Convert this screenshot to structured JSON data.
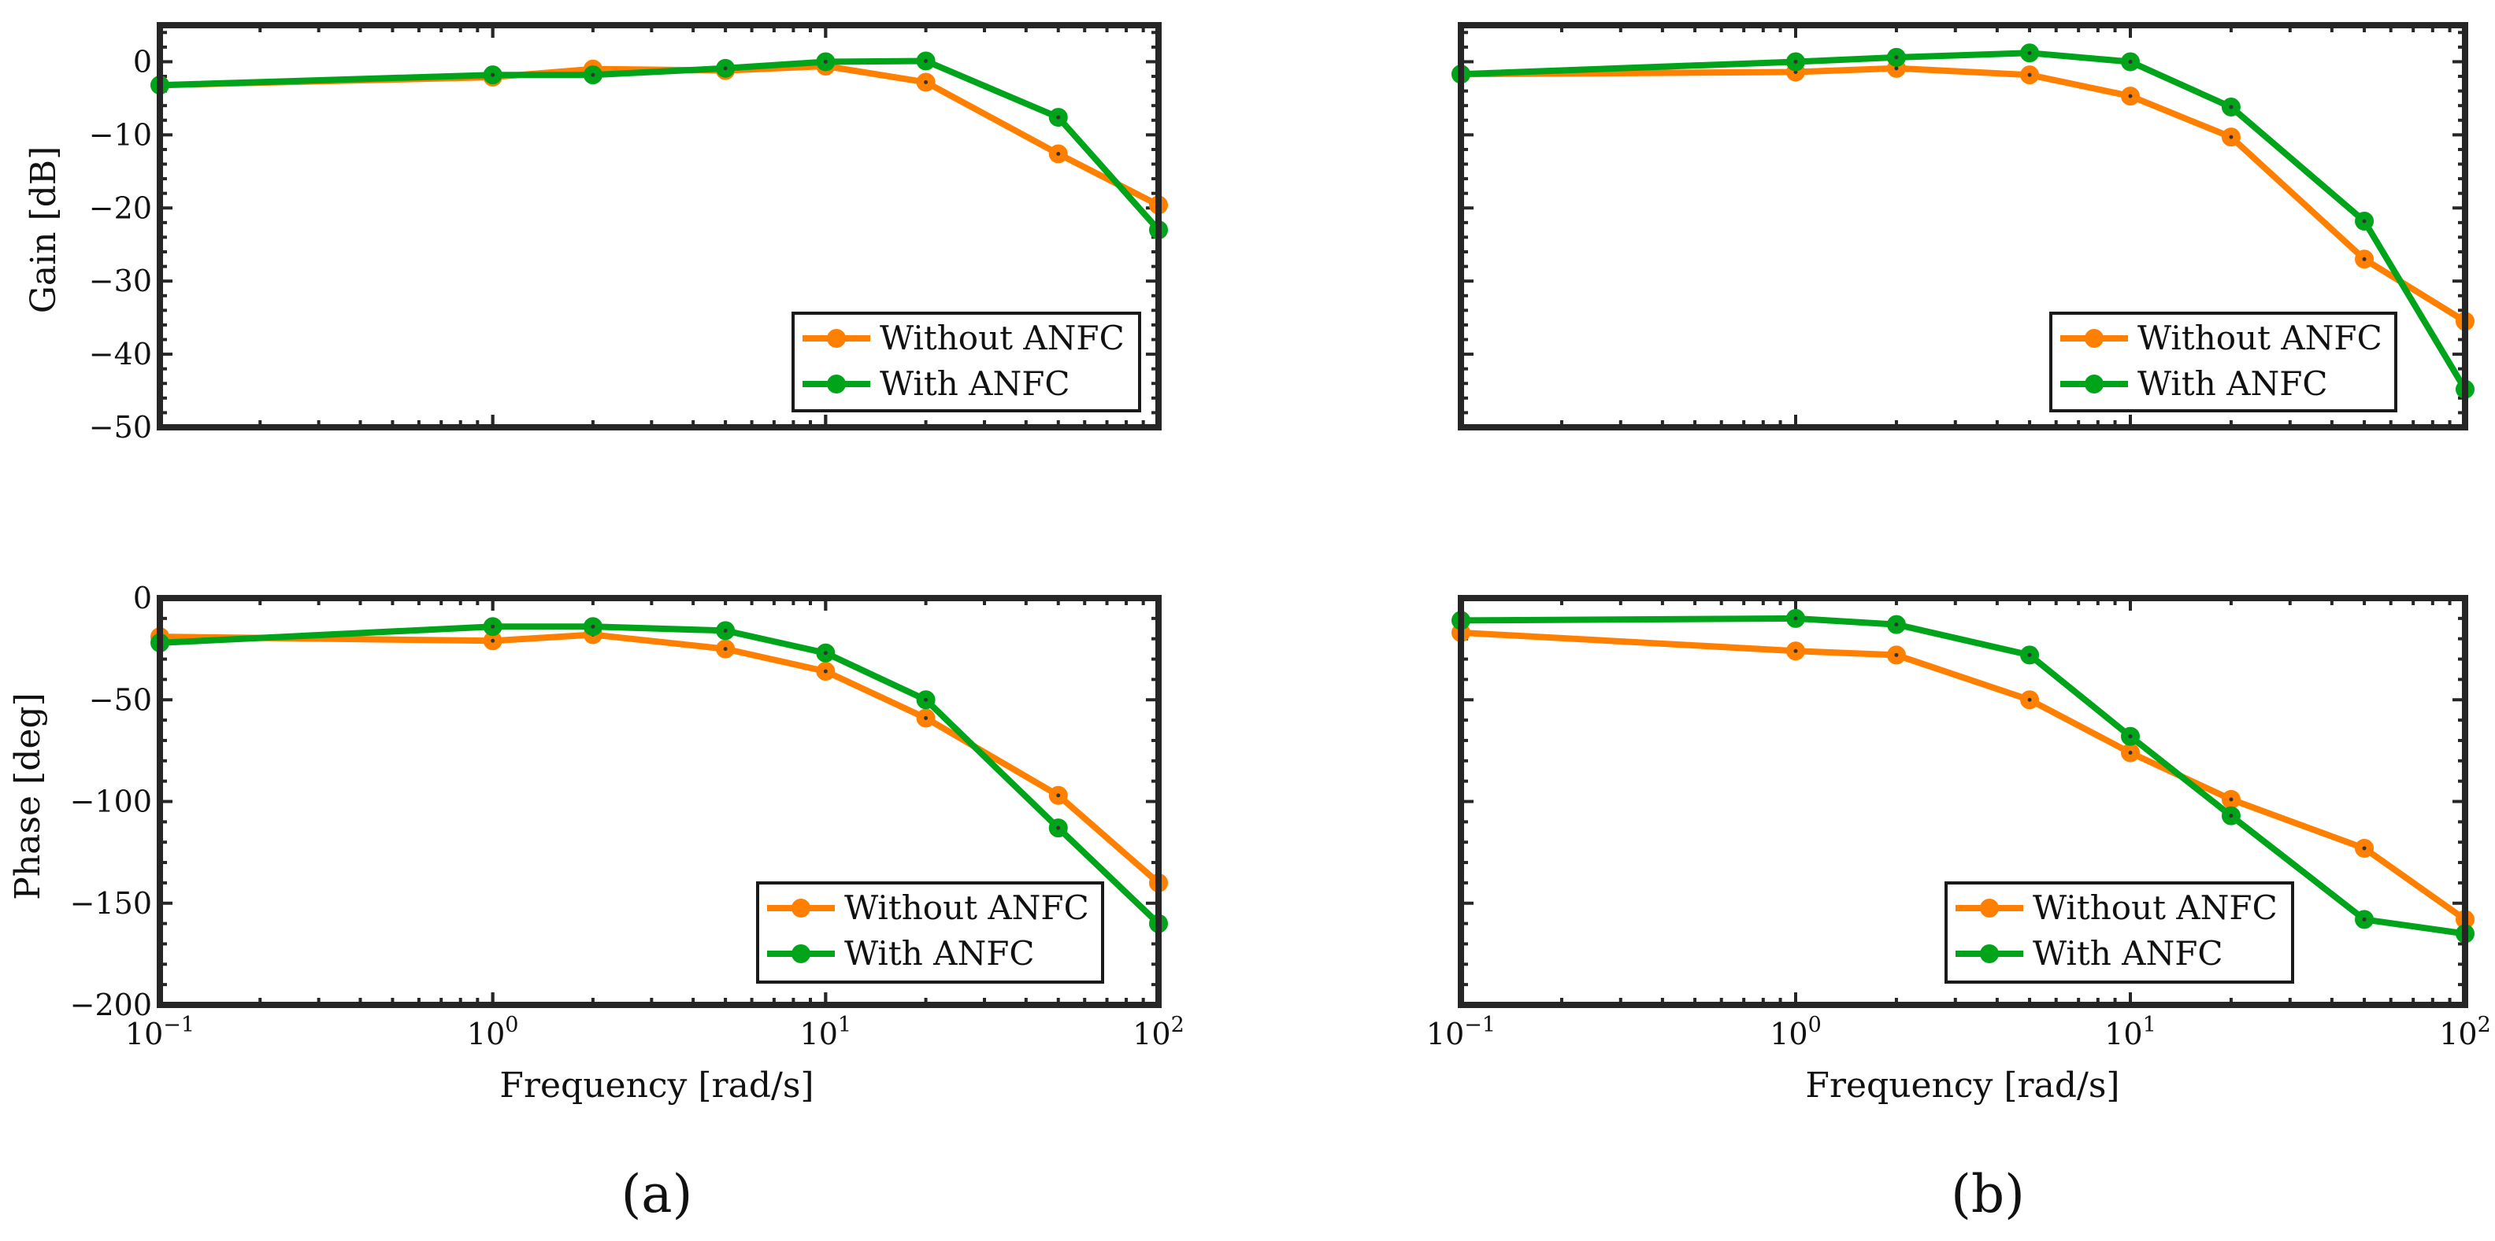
{
  "series_styles": [
    {
      "name": "Without ANFC",
      "color": "#FF8000"
    },
    {
      "name": "With ANFC",
      "color": "#00A41A"
    }
  ],
  "labels": {
    "gain_ylabel": "Gain [dB]",
    "phase_ylabel": "Phase [deg]",
    "xlabel": "Frequency [rad/s]",
    "legend_without": "Without ANFC",
    "legend_with": "With ANFC",
    "panel_a": "(a)",
    "panel_b": "(b)"
  },
  "chart_data": [
    {
      "type": "line",
      "panel": "(a)",
      "subplot": "gain",
      "xscale": "log",
      "xlim": [
        0.1,
        100
      ],
      "ylim": [
        -50,
        5
      ],
      "ylabel": "Gain [dB]",
      "xlabel": "",
      "yticks": [
        0,
        -10,
        -20,
        -30,
        -40,
        -50
      ],
      "ytick_labels": [
        "0",
        "−10",
        "−20",
        "−30",
        "−40",
        "−50"
      ],
      "legend_position": "lower-right",
      "x": [
        0.1,
        1,
        2,
        5,
        10,
        20,
        50,
        100
      ],
      "series": [
        {
          "name": "Without ANFC",
          "values": [
            -3.2,
            -2.1,
            -1.0,
            -1.2,
            -0.6,
            -2.8,
            -12.6,
            -19.6
          ]
        },
        {
          "name": "With ANFC",
          "values": [
            -3.2,
            -1.8,
            -1.8,
            -0.9,
            0.0,
            0.1,
            -7.6,
            -23.0
          ]
        }
      ]
    },
    {
      "type": "line",
      "panel": "(a)",
      "subplot": "phase",
      "xscale": "log",
      "xlim": [
        0.1,
        100
      ],
      "ylim": [
        -200,
        0
      ],
      "ylabel": "Phase [deg]",
      "xlabel": "Frequency [rad/s]",
      "yticks": [
        0,
        -50,
        -100,
        -150,
        -200
      ],
      "ytick_labels": [
        "0",
        "−50",
        "−100",
        "−150",
        "−200"
      ],
      "xtick_labels": [
        {
          "base": "10",
          "exp": "−1"
        },
        {
          "base": "10",
          "exp": "0"
        },
        {
          "base": "10",
          "exp": "1"
        },
        {
          "base": "10",
          "exp": "2"
        }
      ],
      "legend_position": "lower-right",
      "x": [
        0.1,
        1,
        2,
        5,
        10,
        20,
        50,
        100
      ],
      "series": [
        {
          "name": "Without ANFC",
          "values": [
            -19,
            -21,
            -18,
            -25,
            -36,
            -59,
            -97,
            -140
          ]
        },
        {
          "name": "With ANFC",
          "values": [
            -22,
            -14,
            -14,
            -16,
            -27,
            -50,
            -113,
            -160
          ]
        }
      ]
    },
    {
      "type": "line",
      "panel": "(b)",
      "subplot": "gain",
      "xscale": "log",
      "xlim": [
        0.1,
        100
      ],
      "ylim": [
        -50,
        5
      ],
      "ylabel": "",
      "xlabel": "",
      "legend_position": "lower-right",
      "x": [
        0.1,
        1,
        2,
        5,
        10,
        20,
        50,
        100
      ],
      "series": [
        {
          "name": "Without ANFC",
          "values": [
            -1.7,
            -1.4,
            -0.9,
            -1.8,
            -4.7,
            -10.3,
            -27.0,
            -35.5
          ]
        },
        {
          "name": "With ANFC",
          "values": [
            -1.7,
            0.0,
            0.6,
            1.2,
            0.0,
            -6.2,
            -21.8,
            -44.8
          ]
        }
      ]
    },
    {
      "type": "line",
      "panel": "(b)",
      "subplot": "phase",
      "xscale": "log",
      "xlim": [
        0.1,
        100
      ],
      "ylim": [
        -200,
        0
      ],
      "ylabel": "",
      "xlabel": "Frequency [rad/s]",
      "xtick_labels": [
        {
          "base": "10",
          "exp": "−1"
        },
        {
          "base": "10",
          "exp": "0"
        },
        {
          "base": "10",
          "exp": "1"
        },
        {
          "base": "10",
          "exp": "2"
        }
      ],
      "legend_position": "lower-right",
      "x": [
        0.1,
        1,
        2,
        5,
        10,
        20,
        50,
        100
      ],
      "series": [
        {
          "name": "Without ANFC",
          "values": [
            -17,
            -26,
            -28,
            -50,
            -76,
            -99,
            -123,
            -158
          ]
        },
        {
          "name": "With ANFC",
          "values": [
            -11,
            -10,
            -13,
            -28,
            -68,
            -107,
            -158,
            -165
          ]
        }
      ]
    }
  ]
}
